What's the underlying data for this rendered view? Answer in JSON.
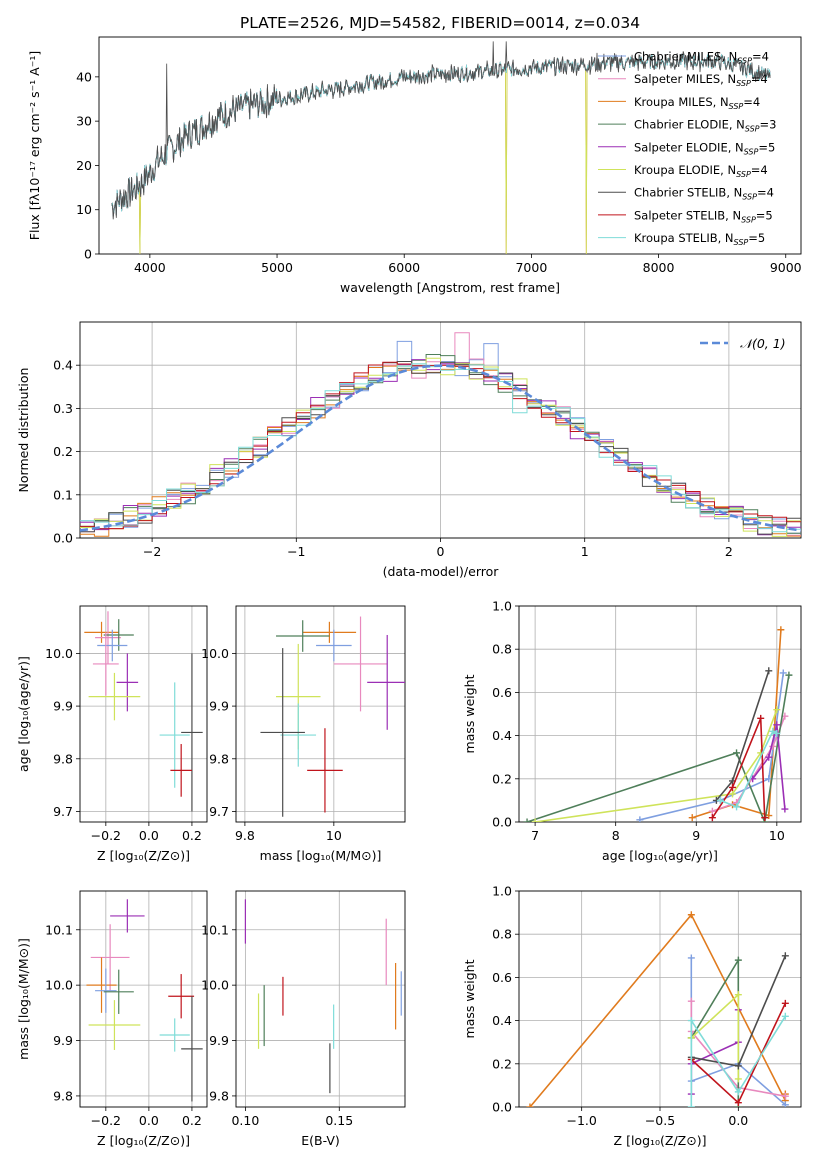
{
  "figure_title": "PLATE=2526, MJD=54582, FIBERID=0014, z=0.034",
  "colors": {
    "Chabrier MILES": "#7f9fe0",
    "Salpeter MILES": "#e889be",
    "Kroupa MILES": "#e07b1e",
    "Chabrier ELODIE": "#4f7f5a",
    "Salpeter ELODIE": "#9b2fb5",
    "Kroupa ELODIE": "#cfe35a",
    "Chabrier STELIB": "#4d4d4d",
    "Salpeter STELIB": "#c0141c",
    "Kroupa STELIB": "#7fdcd8",
    "normal": "#5b8ad8"
  },
  "chart_data": [
    {
      "id": "spectrum",
      "type": "line",
      "title": "PLATE=2526, MJD=54582, FIBERID=0014, z=0.034",
      "xlabel": "wavelength [Angstrom, rest frame]",
      "ylabel": "Flux [fλ10⁻¹⁷ erg cm⁻² s⁻¹ A⁻¹]",
      "xlim": [
        3600,
        9120
      ],
      "ylim": [
        0,
        49
      ],
      "xticks": [
        4000,
        5000,
        6000,
        7000,
        8000,
        9000
      ],
      "yticks": [
        0,
        10,
        20,
        30,
        40
      ],
      "legend_position": "top-right",
      "legend": [
        "Chabrier MILES, N_SSP=4",
        "Salpeter MILES, N_SSP=4",
        "Kroupa MILES, N_SSP=4",
        "Chabrier ELODIE, N_SSP=3",
        "Salpeter ELODIE, N_SSP=5",
        "Kroupa ELODIE, N_SSP=4",
        "Chabrier STELIB, N_SSP=4",
        "Salpeter STELIB, N_SSP=5",
        "Kroupa STELIB, N_SSP=5"
      ],
      "continuum_x": [
        3700,
        3900,
        4100,
        4300,
        4600,
        5000,
        5500,
        6000,
        6500,
        7000,
        7500,
        8000,
        8500,
        8880
      ],
      "continuum_y": [
        11,
        15,
        22,
        27,
        32,
        35,
        37.5,
        40,
        41,
        42,
        43,
        43.5,
        43.5,
        40
      ],
      "spikes": [
        {
          "x": 4130,
          "y": 43
        },
        {
          "x": 6700,
          "y": 48
        },
        {
          "x": 6800,
          "y": 48
        }
      ],
      "dips": [
        {
          "x": 3920,
          "y": 0
        },
        {
          "x": 6800,
          "y": 0
        },
        {
          "x": 7430,
          "y": 0
        }
      ]
    },
    {
      "id": "residuals",
      "type": "bar",
      "xlabel": "(data-model)/error",
      "ylabel": "Normed distribution",
      "xlim": [
        -2.5,
        2.5
      ],
      "ylim": [
        0,
        0.5
      ],
      "xticks": [
        -2,
        -1,
        0,
        1,
        2
      ],
      "yticks": [
        0.0,
        0.1,
        0.2,
        0.3,
        0.4
      ],
      "legend": [
        "𝒩(0, 1)"
      ],
      "legend_position": "top-right",
      "bin_width": 0.1,
      "bin_start": -2.5,
      "base_values": [
        0.025,
        0.03,
        0.04,
        0.05,
        0.06,
        0.07,
        0.09,
        0.105,
        0.125,
        0.145,
        0.165,
        0.19,
        0.21,
        0.235,
        0.255,
        0.28,
        0.3,
        0.325,
        0.345,
        0.36,
        0.375,
        0.385,
        0.39,
        0.395,
        0.4,
        0.4,
        0.395,
        0.39,
        0.375,
        0.36,
        0.345,
        0.325,
        0.3,
        0.28,
        0.255,
        0.235,
        0.21,
        0.19,
        0.165,
        0.145,
        0.125,
        0.105,
        0.09,
        0.07,
        0.06,
        0.05,
        0.04,
        0.03,
        0.025,
        0.02
      ],
      "highlights": [
        {
          "series": "Chabrier MILES",
          "bin": 28,
          "value": 0.45
        },
        {
          "series": "Salpeter MILES",
          "bin": 26,
          "value": 0.475
        },
        {
          "series": "Chabrier MILES",
          "bin": 22,
          "value": 0.455
        },
        {
          "series": "Kroupa STELIB",
          "bin": 30,
          "value": 0.29
        }
      ]
    },
    {
      "id": "age_vs_Z",
      "type": "scatter",
      "xlabel": "Z [log₁₀(Z/Z⊙)]",
      "ylabel": "age  [log₁₀(age/yr)]",
      "xlim": [
        -0.32,
        0.27
      ],
      "ylim": [
        9.68,
        10.09
      ],
      "xticks": [
        -0.2,
        0.0,
        0.2
      ],
      "xticklabels": [
        "−0.2",
        "0.0",
        "0.2"
      ],
      "yticks": [
        9.7,
        9.8,
        9.9,
        10.0
      ],
      "points": [
        {
          "series": "Kroupa MILES",
          "x": -0.22,
          "xerr": 0.08,
          "y": 10.04,
          "yerr": 0.02
        },
        {
          "series": "Salpeter MILES",
          "x": -0.19,
          "xerr": 0.06,
          "y": 10.03,
          "yerr": 0.05
        },
        {
          "series": "Chabrier ELODIE",
          "x": -0.14,
          "xerr": 0.07,
          "y": 10.035,
          "yerr": 0.03
        },
        {
          "series": "Chabrier MILES",
          "x": -0.17,
          "xerr": 0.07,
          "y": 10.015,
          "yerr": 0.03
        },
        {
          "series": "Salpeter MILES",
          "x": -0.2,
          "xerr": 0.06,
          "y": 9.98,
          "yerr": 0.06
        },
        {
          "series": "Salpeter ELODIE",
          "x": -0.1,
          "xerr": 0.05,
          "y": 9.945,
          "yerr": 0.055
        },
        {
          "series": "Kroupa ELODIE",
          "x": -0.16,
          "xerr": 0.12,
          "y": 9.918,
          "yerr": 0.045
        },
        {
          "series": "Kroupa STELIB",
          "x": 0.12,
          "xerr": 0.07,
          "y": 9.845,
          "yerr": 0.1
        },
        {
          "series": "Chabrier STELIB",
          "x": 0.2,
          "xerr": 0.05,
          "y": 9.85,
          "yerr": 0.15
        },
        {
          "series": "Salpeter STELIB",
          "x": 0.15,
          "xerr": 0.05,
          "y": 9.778,
          "yerr": 0.05
        }
      ]
    },
    {
      "id": "age_vs_mass",
      "type": "scatter",
      "xlabel": "mass [log₁₀(M/M⊙)]",
      "ylabel": "",
      "xlim": [
        9.78,
        10.16
      ],
      "ylim": [
        9.68,
        10.09
      ],
      "xticks": [
        9.8,
        10.0
      ],
      "yticks": [
        9.7,
        9.8,
        9.9,
        10.0
      ],
      "points": [
        {
          "series": "Kroupa MILES",
          "x": 9.99,
          "xerr": 0.06,
          "y": 10.04,
          "yerr": 0.02
        },
        {
          "series": "Chabrier ELODIE",
          "x": 9.93,
          "xerr": 0.06,
          "y": 10.033,
          "yerr": 0.03
        },
        {
          "series": "Chabrier MILES",
          "x": 10.0,
          "xerr": 0.04,
          "y": 10.015,
          "yerr": 0.03
        },
        {
          "series": "Salpeter MILES",
          "x": 10.06,
          "xerr": 0.06,
          "y": 9.98,
          "yerr": 0.09
        },
        {
          "series": "Salpeter ELODIE",
          "x": 10.12,
          "xerr": 0.045,
          "y": 9.945,
          "yerr": 0.09
        },
        {
          "series": "Kroupa ELODIE",
          "x": 9.92,
          "xerr": 0.05,
          "y": 9.918,
          "yerr": 0.1
        },
        {
          "series": "Kroupa STELIB",
          "x": 9.92,
          "xerr": 0.04,
          "y": 9.845,
          "yerr": 0.06
        },
        {
          "series": "Chabrier STELIB",
          "x": 9.885,
          "xerr": 0.05,
          "y": 9.85,
          "yerr": 0.16
        },
        {
          "series": "Salpeter STELIB",
          "x": 9.98,
          "xerr": 0.04,
          "y": 9.778,
          "yerr": 0.08
        }
      ]
    },
    {
      "id": "weight_vs_age",
      "type": "line",
      "xlabel": "age  [log₁₀(age/yr)]",
      "ylabel": "mass weight",
      "xlim": [
        6.8,
        10.3
      ],
      "ylim": [
        0,
        1.0
      ],
      "xticks": [
        7,
        8,
        9,
        10
      ],
      "yticks": [
        0.0,
        0.2,
        0.4,
        0.6,
        0.8,
        1.0
      ],
      "series": [
        {
          "name": "Kroupa MILES",
          "x": [
            8.95,
            9.45,
            9.9,
            10.05
          ],
          "y": [
            0.02,
            0.08,
            0.03,
            0.89
          ]
        },
        {
          "name": "Chabrier MILES",
          "x": [
            8.3,
            9.3,
            9.9,
            10.08
          ],
          "y": [
            0.01,
            0.1,
            0.2,
            0.69
          ]
        },
        {
          "name": "Salpeter MILES",
          "x": [
            9.2,
            9.5,
            9.95,
            10.1
          ],
          "y": [
            0.05,
            0.09,
            0.35,
            0.49
          ]
        },
        {
          "name": "Chabrier ELODIE",
          "x": [
            6.9,
            9.5,
            9.85,
            10.15
          ],
          "y": [
            0.0,
            0.32,
            0.0,
            0.68
          ]
        },
        {
          "name": "Salpeter ELODIE",
          "x": [
            9.7,
            9.9,
            10.0,
            10.1
          ],
          "y": [
            0.2,
            0.3,
            0.45,
            0.06
          ]
        },
        {
          "name": "Kroupa ELODIE",
          "x": [
            7.0,
            9.45,
            9.8,
            10.0
          ],
          "y": [
            0.0,
            0.13,
            0.32,
            0.52
          ]
        },
        {
          "name": "Chabrier STELIB",
          "x": [
            9.25,
            9.45,
            9.9
          ],
          "y": [
            0.1,
            0.19,
            0.7
          ]
        },
        {
          "name": "Salpeter STELIB",
          "x": [
            9.2,
            9.45,
            9.8,
            9.85
          ],
          "y": [
            0.02,
            0.16,
            0.48,
            0.02
          ]
        },
        {
          "name": "Kroupa STELIB",
          "x": [
            9.3,
            9.5,
            9.95,
            10.0
          ],
          "y": [
            0.1,
            0.07,
            0.42,
            0.41
          ]
        }
      ]
    },
    {
      "id": "mass_vs_Z",
      "type": "scatter",
      "xlabel": "Z [log₁₀(Z/Z⊙)]",
      "ylabel": "mass [log₁₀(M/M⊙)]",
      "xlim": [
        -0.32,
        0.27
      ],
      "ylim": [
        9.78,
        10.17
      ],
      "xticks": [
        -0.2,
        0.0,
        0.2
      ],
      "xticklabels": [
        "−0.2",
        "0.0",
        "0.2"
      ],
      "yticks": [
        9.8,
        9.9,
        10.0,
        10.1
      ],
      "points": [
        {
          "series": "Salpeter ELODIE",
          "x": -0.1,
          "xerr": 0.08,
          "y": 10.125,
          "yerr": 0.03
        },
        {
          "series": "Salpeter MILES",
          "x": -0.18,
          "xerr": 0.09,
          "y": 10.05,
          "yerr": 0.06
        },
        {
          "series": "Kroupa MILES",
          "x": -0.22,
          "xerr": 0.07,
          "y": 10.0,
          "yerr": 0.05
        },
        {
          "series": "Chabrier MILES",
          "x": -0.2,
          "xerr": 0.05,
          "y": 9.99,
          "yerr": 0.04
        },
        {
          "series": "Chabrier ELODIE",
          "x": -0.14,
          "xerr": 0.07,
          "y": 9.988,
          "yerr": 0.04
        },
        {
          "series": "Kroupa ELODIE",
          "x": -0.16,
          "xerr": 0.12,
          "y": 9.928,
          "yerr": 0.045
        },
        {
          "series": "Salpeter STELIB",
          "x": 0.15,
          "xerr": 0.06,
          "y": 9.98,
          "yerr": 0.04
        },
        {
          "series": "Kroupa STELIB",
          "x": 0.12,
          "xerr": 0.07,
          "y": 9.91,
          "yerr": 0.03
        },
        {
          "series": "Chabrier STELIB",
          "x": 0.2,
          "xerr": 0.05,
          "y": 9.885,
          "yerr": 0.095
        }
      ]
    },
    {
      "id": "mass_vs_ebv",
      "type": "scatter",
      "xlabel": "E(B-V)",
      "ylabel": "",
      "xlim": [
        0.095,
        0.185
      ],
      "ylim": [
        9.78,
        10.17
      ],
      "xticks": [
        0.1,
        0.15
      ],
      "xticklabels": [
        "0.10",
        "0.15"
      ],
      "yticks": [
        9.8,
        9.9,
        10.0,
        10.1
      ],
      "points": [
        {
          "series": "Salpeter ELODIE",
          "x": 0.1,
          "y": 10.115,
          "yerr": 0.04
        },
        {
          "series": "Kroupa ELODIE",
          "x": 0.107,
          "y": 9.935,
          "yerr": 0.05
        },
        {
          "series": "Chabrier ELODIE",
          "x": 0.11,
          "y": 9.945,
          "yerr": 0.055
        },
        {
          "series": "Salpeter STELIB",
          "x": 0.12,
          "y": 9.98,
          "yerr": 0.035
        },
        {
          "series": "Chabrier STELIB",
          "x": 0.145,
          "y": 9.85,
          "yerr": 0.045
        },
        {
          "series": "Kroupa STELIB",
          "x": 0.147,
          "y": 9.925,
          "yerr": 0.04
        },
        {
          "series": "Salpeter MILES",
          "x": 0.175,
          "y": 10.06,
          "yerr": 0.06
        },
        {
          "series": "Kroupa MILES",
          "x": 0.18,
          "y": 9.98,
          "yerr": 0.06
        },
        {
          "series": "Chabrier MILES",
          "x": 0.183,
          "y": 9.985,
          "yerr": 0.04
        }
      ]
    },
    {
      "id": "weight_vs_Z",
      "type": "line",
      "xlabel": "Z [log₁₀(Z/Z⊙)]",
      "ylabel": "mass weight",
      "xlim": [
        -1.4,
        0.4
      ],
      "ylim": [
        0,
        1.0
      ],
      "xticks": [
        -1.0,
        -0.5,
        0.0
      ],
      "xticklabels": [
        "−1.0",
        "−0.5",
        "0.0"
      ],
      "yticks": [
        0.0,
        0.2,
        0.4,
        0.6,
        0.8,
        1.0
      ],
      "series": [
        {
          "name": "Kroupa MILES",
          "x": [
            -1.33,
            -0.3,
            0.3,
            0.3
          ],
          "y": [
            0.0,
            0.89,
            0.03,
            0.06
          ]
        },
        {
          "name": "Chabrier MILES",
          "x": [
            -0.3,
            -0.3,
            0.0,
            0.3
          ],
          "y": [
            0.69,
            0.12,
            0.2,
            0.01
          ]
        },
        {
          "name": "Salpeter MILES",
          "x": [
            -0.3,
            -0.3,
            0.0,
            0.3
          ],
          "y": [
            0.49,
            0.35,
            0.09,
            0.05
          ]
        },
        {
          "name": "Chabrier ELODIE",
          "x": [
            -0.3,
            0.0,
            0.0
          ],
          "y": [
            0.32,
            0.68,
            0.0
          ]
        },
        {
          "name": "Salpeter ELODIE",
          "x": [
            -0.3,
            -0.3,
            0.0,
            0.0
          ],
          "y": [
            0.06,
            0.2,
            0.3,
            0.45
          ]
        },
        {
          "name": "Kroupa ELODIE",
          "x": [
            -0.3,
            0.0,
            0.0
          ],
          "y": [
            0.32,
            0.52,
            0.13
          ]
        },
        {
          "name": "Chabrier STELIB",
          "x": [
            -0.3,
            0.0,
            0.3
          ],
          "y": [
            0.23,
            0.19,
            0.7
          ]
        },
        {
          "name": "Salpeter STELIB",
          "x": [
            -0.3,
            0.0,
            0.3
          ],
          "y": [
            0.22,
            0.02,
            0.48
          ]
        },
        {
          "name": "Kroupa STELIB",
          "x": [
            -0.3,
            -0.3,
            0.0,
            0.3
          ],
          "y": [
            0.0,
            0.4,
            0.07,
            0.42
          ]
        }
      ]
    }
  ]
}
